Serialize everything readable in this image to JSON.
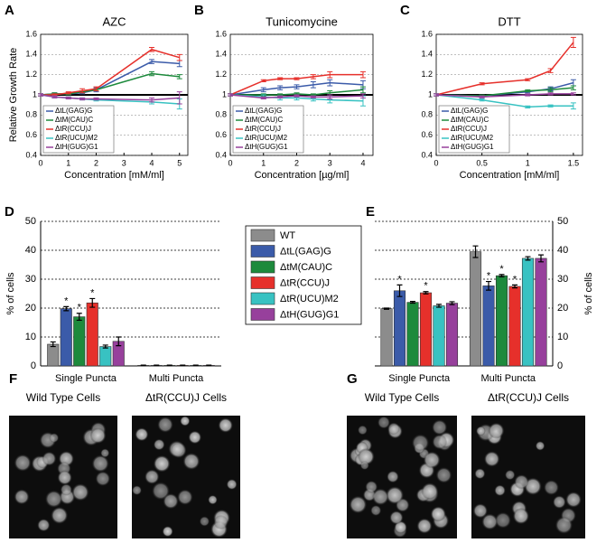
{
  "chart_data": [
    {
      "type": "line",
      "panel": "A",
      "title": "AZC",
      "xlabel": "Concentration [mM/ml]",
      "ylabel": "Relative Growth Rate",
      "x": [
        0,
        0.5,
        1,
        1.5,
        2,
        4,
        5
      ],
      "xlim": [
        0,
        5.3
      ],
      "xticks": [
        0,
        1,
        2,
        3,
        4,
        5
      ],
      "ylim": [
        0.4,
        1.6
      ],
      "yticks": [
        0.4,
        0.6,
        0.8,
        1,
        1.2,
        1.4,
        1.6
      ],
      "grid": true,
      "hline": 1,
      "legend": "lower left",
      "series": [
        {
          "name": "ΔtL(GAG)G",
          "color": "#3b5ba9",
          "values": [
            1,
            1.01,
            1.01,
            1.02,
            1.05,
            1.33,
            1.31
          ],
          "errors": [
            0.01,
            0.01,
            0.01,
            0.01,
            0.02,
            0.02,
            0.03
          ]
        },
        {
          "name": "ΔtM(CAU)C",
          "color": "#1d8a3c",
          "values": [
            1,
            1.01,
            1.01,
            1.03,
            1.05,
            1.21,
            1.18
          ],
          "errors": [
            0.01,
            0.01,
            0.01,
            0.01,
            0.01,
            0.02,
            0.02
          ]
        },
        {
          "name": "ΔtR(CCU)J",
          "color": "#e6302b",
          "values": [
            1,
            1,
            1.02,
            1.04,
            1.06,
            1.45,
            1.37
          ],
          "errors": [
            0.01,
            0.01,
            0.01,
            0.02,
            0.02,
            0.02,
            0.03
          ]
        },
        {
          "name": "ΔtR(UCU)M2",
          "color": "#38c2c2",
          "values": [
            1,
            0.98,
            0.97,
            0.96,
            0.95,
            0.93,
            0.91
          ],
          "errors": [
            0.01,
            0.01,
            0.01,
            0.01,
            0.01,
            0.02,
            0.05
          ]
        },
        {
          "name": "ΔtH(GUG)G1",
          "color": "#97409c",
          "values": [
            1,
            0.98,
            0.97,
            0.96,
            0.96,
            0.95,
            0.97
          ],
          "errors": [
            0.01,
            0.01,
            0.01,
            0.01,
            0.01,
            0.02,
            0.06
          ]
        }
      ]
    },
    {
      "type": "line",
      "panel": "B",
      "title": "Tunicomycine",
      "xlabel": "Concentration [µg/ml]",
      "x": [
        0,
        1,
        1.5,
        2,
        2.5,
        3,
        4
      ],
      "xlim": [
        0,
        4.3
      ],
      "xticks": [
        0,
        1,
        2,
        3,
        4
      ],
      "ylim": [
        0.4,
        1.6
      ],
      "yticks": [
        0.4,
        0.6,
        0.8,
        1,
        1.2,
        1.4,
        1.6
      ],
      "grid": true,
      "hline": 1,
      "legend": "lower left",
      "series": [
        {
          "name": "ΔtL(GAG)G",
          "color": "#3b5ba9",
          "values": [
            1,
            1.05,
            1.07,
            1.08,
            1.1,
            1.12,
            1.1
          ],
          "errors": [
            0.01,
            0.02,
            0.02,
            0.02,
            0.03,
            0.03,
            0.04
          ]
        },
        {
          "name": "ΔtM(CAU)C",
          "color": "#1d8a3c",
          "values": [
            1,
            1,
            1,
            1.01,
            1,
            1.02,
            1.05
          ],
          "errors": [
            0.01,
            0.01,
            0.01,
            0.01,
            0.01,
            0.02,
            0.03
          ]
        },
        {
          "name": "ΔtR(CCU)J",
          "color": "#e6302b",
          "values": [
            1,
            1.14,
            1.16,
            1.16,
            1.18,
            1.2,
            1.2
          ],
          "errors": [
            0.01,
            0.01,
            0.01,
            0.01,
            0.02,
            0.03,
            0.03
          ]
        },
        {
          "name": "ΔtR(UCU)M2",
          "color": "#38c2c2",
          "values": [
            1,
            0.98,
            0.97,
            0.97,
            0.96,
            0.95,
            0.94
          ],
          "errors": [
            0.01,
            0.02,
            0.02,
            0.02,
            0.02,
            0.03,
            0.05
          ]
        },
        {
          "name": "ΔtH(GUG)G1",
          "color": "#97409c",
          "values": [
            1,
            0.97,
            0.98,
            0.99,
            0.98,
            0.98,
            0.99
          ],
          "errors": [
            0.01,
            0.01,
            0.01,
            0.01,
            0.01,
            0.02,
            0.02
          ]
        }
      ]
    },
    {
      "type": "line",
      "panel": "C",
      "title": "DTT",
      "xlabel": "Concentration [mM/ml]",
      "x": [
        0,
        0.5,
        1,
        1.25,
        1.5
      ],
      "xlim": [
        0,
        1.6
      ],
      "xticks": [
        0,
        0.5,
        1,
        1.5
      ],
      "ylim": [
        0.4,
        1.6
      ],
      "yticks": [
        0.4,
        0.6,
        0.8,
        1,
        1.2,
        1.4,
        1.6
      ],
      "grid": true,
      "hline": 1,
      "legend": "lower left",
      "series": [
        {
          "name": "ΔtL(GAG)G",
          "color": "#3b5ba9",
          "values": [
            1,
            0.99,
            1.03,
            1.06,
            1.12
          ],
          "errors": [
            0.01,
            0.01,
            0.01,
            0.02,
            0.03
          ]
        },
        {
          "name": "ΔtM(CAU)C",
          "color": "#1d8a3c",
          "values": [
            1,
            0.99,
            1.04,
            1.05,
            1.07
          ],
          "errors": [
            0.01,
            0.01,
            0.01,
            0.02,
            0.02
          ]
        },
        {
          "name": "ΔtR(CCU)J",
          "color": "#e6302b",
          "values": [
            1,
            1.11,
            1.15,
            1.24,
            1.52
          ],
          "errors": [
            0.01,
            0.01,
            0.01,
            0.02,
            0.05
          ]
        },
        {
          "name": "ΔtR(UCU)M2",
          "color": "#38c2c2",
          "values": [
            1,
            0.95,
            0.88,
            0.89,
            0.89
          ],
          "errors": [
            0.01,
            0.01,
            0.01,
            0.01,
            0.03
          ]
        },
        {
          "name": "ΔtH(GUG)G1",
          "color": "#97409c",
          "values": [
            1,
            0.98,
            1,
            1.01,
            1.01
          ],
          "errors": [
            0.01,
            0.01,
            0.01,
            0.01,
            0.01
          ]
        }
      ]
    },
    {
      "type": "bar",
      "panel": "D",
      "ylabel": "% of cells",
      "yaxis_side": "left",
      "categories": [
        "Single Puncta",
        "Multi Puncta"
      ],
      "ylim": [
        0,
        50
      ],
      "yticks": [
        0,
        10,
        20,
        30,
        40,
        50
      ],
      "grid": true,
      "legend": "right",
      "series": [
        {
          "name": "WT",
          "color": "#8c8c8c",
          "values": [
            7.5,
            0.2
          ],
          "errors": [
            0.8,
            0.1
          ],
          "markers": [
            null,
            null
          ]
        },
        {
          "name": "ΔtL(GAG)G",
          "color": "#3b5ba9",
          "values": [
            19.8,
            0.2
          ],
          "errors": [
            0.7,
            0.1
          ],
          "markers": [
            "*",
            null
          ]
        },
        {
          "name": "ΔtM(CAU)C",
          "color": "#1d8a3c",
          "values": [
            17,
            0.2
          ],
          "errors": [
            1.2,
            0.1
          ],
          "markers": [
            "*",
            null
          ]
        },
        {
          "name": "ΔtR(CCU)J",
          "color": "#e6302b",
          "values": [
            21.8,
            0.2
          ],
          "errors": [
            1.5,
            0.1
          ],
          "markers": [
            "*",
            null
          ]
        },
        {
          "name": "ΔtR(UCU)M2",
          "color": "#38c2c2",
          "values": [
            6.7,
            0.2
          ],
          "errors": [
            0.5,
            0.1
          ],
          "markers": [
            null,
            null
          ]
        },
        {
          "name": "ΔtH(GUG)G1",
          "color": "#97409c",
          "values": [
            8.5,
            0.2
          ],
          "errors": [
            1.5,
            0.1
          ],
          "markers": [
            null,
            null
          ]
        }
      ]
    },
    {
      "type": "bar",
      "panel": "E",
      "ylabel": "% of cells",
      "yaxis_side": "right",
      "categories": [
        "Single Puncta",
        "Multi Puncta"
      ],
      "ylim": [
        0,
        50
      ],
      "yticks": [
        0,
        10,
        20,
        30,
        40,
        50
      ],
      "grid": true,
      "series": [
        {
          "color": "#8c8c8c",
          "values": [
            19.8,
            39.5
          ],
          "errors": [
            0.2,
            2
          ],
          "markers": [
            null,
            null
          ]
        },
        {
          "color": "#3b5ba9",
          "values": [
            26,
            27.7
          ],
          "errors": [
            2,
            1.5
          ],
          "markers": [
            "*",
            "*"
          ]
        },
        {
          "color": "#1d8a3c",
          "values": [
            22,
            31.2
          ],
          "errors": [
            0.3,
            0.4
          ],
          "markers": [
            null,
            "*"
          ]
        },
        {
          "color": "#e6302b",
          "values": [
            25.3,
            27.5
          ],
          "errors": [
            0.4,
            0.5
          ],
          "markers": [
            "*",
            "*"
          ]
        },
        {
          "color": "#38c2c2",
          "values": [
            20.8,
            37.2
          ],
          "errors": [
            0.5,
            0.6
          ],
          "markers": [
            null,
            null
          ]
        },
        {
          "color": "#97409c",
          "values": [
            21.7,
            37.2
          ],
          "errors": [
            0.5,
            1.2
          ],
          "markers": [
            null,
            null
          ]
        }
      ]
    }
  ],
  "image_panels": [
    {
      "panel": "F",
      "captions": [
        "Wild Type Cells",
        "ΔtR(CCU)J Cells"
      ]
    },
    {
      "panel": "G",
      "captions": [
        "Wild Type Cells",
        "ΔtR(CCU)J Cells"
      ]
    }
  ]
}
